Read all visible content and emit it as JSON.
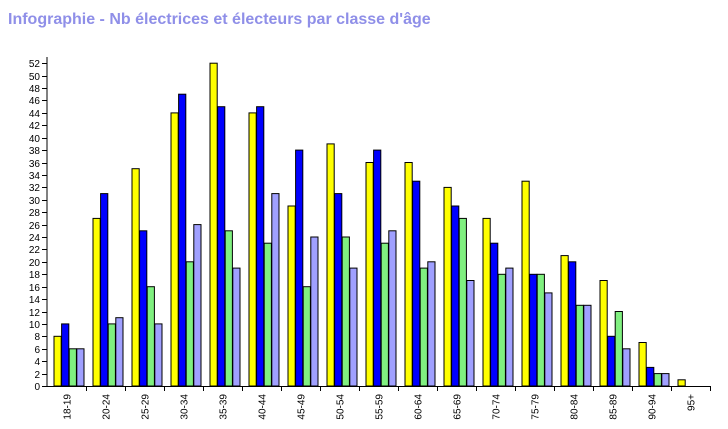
{
  "chart_data": {
    "type": "bar",
    "title": "Infographie - Nb électrices et électeurs par classe d'âge",
    "xlabel": "",
    "ylabel": "",
    "ylim": [
      0,
      53
    ],
    "yticks": [
      0,
      2,
      4,
      6,
      8,
      10,
      12,
      14,
      16,
      18,
      20,
      22,
      24,
      26,
      28,
      30,
      32,
      34,
      36,
      38,
      40,
      42,
      44,
      46,
      48,
      50,
      52
    ],
    "grid": false,
    "legend": "none",
    "categories": [
      "18-19",
      "20-24",
      "25-29",
      "30-34",
      "35-39",
      "40-44",
      "45-49",
      "50-54",
      "55-59",
      "60-64",
      "65-69",
      "70-74",
      "75-79",
      "80-84",
      "85-89",
      "90-94",
      "95+"
    ],
    "series": [
      {
        "color": "#ffff00",
        "values": [
          8,
          27,
          35,
          44,
          52,
          44,
          29,
          39,
          36,
          36,
          32,
          27,
          33,
          21,
          17,
          7,
          1
        ]
      },
      {
        "color": "#0000ff",
        "values": [
          10,
          31,
          25,
          47,
          45,
          45,
          38,
          31,
          38,
          33,
          29,
          23,
          18,
          20,
          8,
          3,
          0
        ]
      },
      {
        "color": "#80f080",
        "values": [
          6,
          10,
          16,
          20,
          25,
          23,
          16,
          24,
          23,
          19,
          27,
          18,
          18,
          13,
          12,
          2,
          0
        ]
      },
      {
        "color": "#a0a0ff",
        "values": [
          6,
          11,
          10,
          26,
          19,
          31,
          24,
          19,
          25,
          20,
          17,
          19,
          15,
          13,
          6,
          2,
          0
        ]
      }
    ]
  }
}
